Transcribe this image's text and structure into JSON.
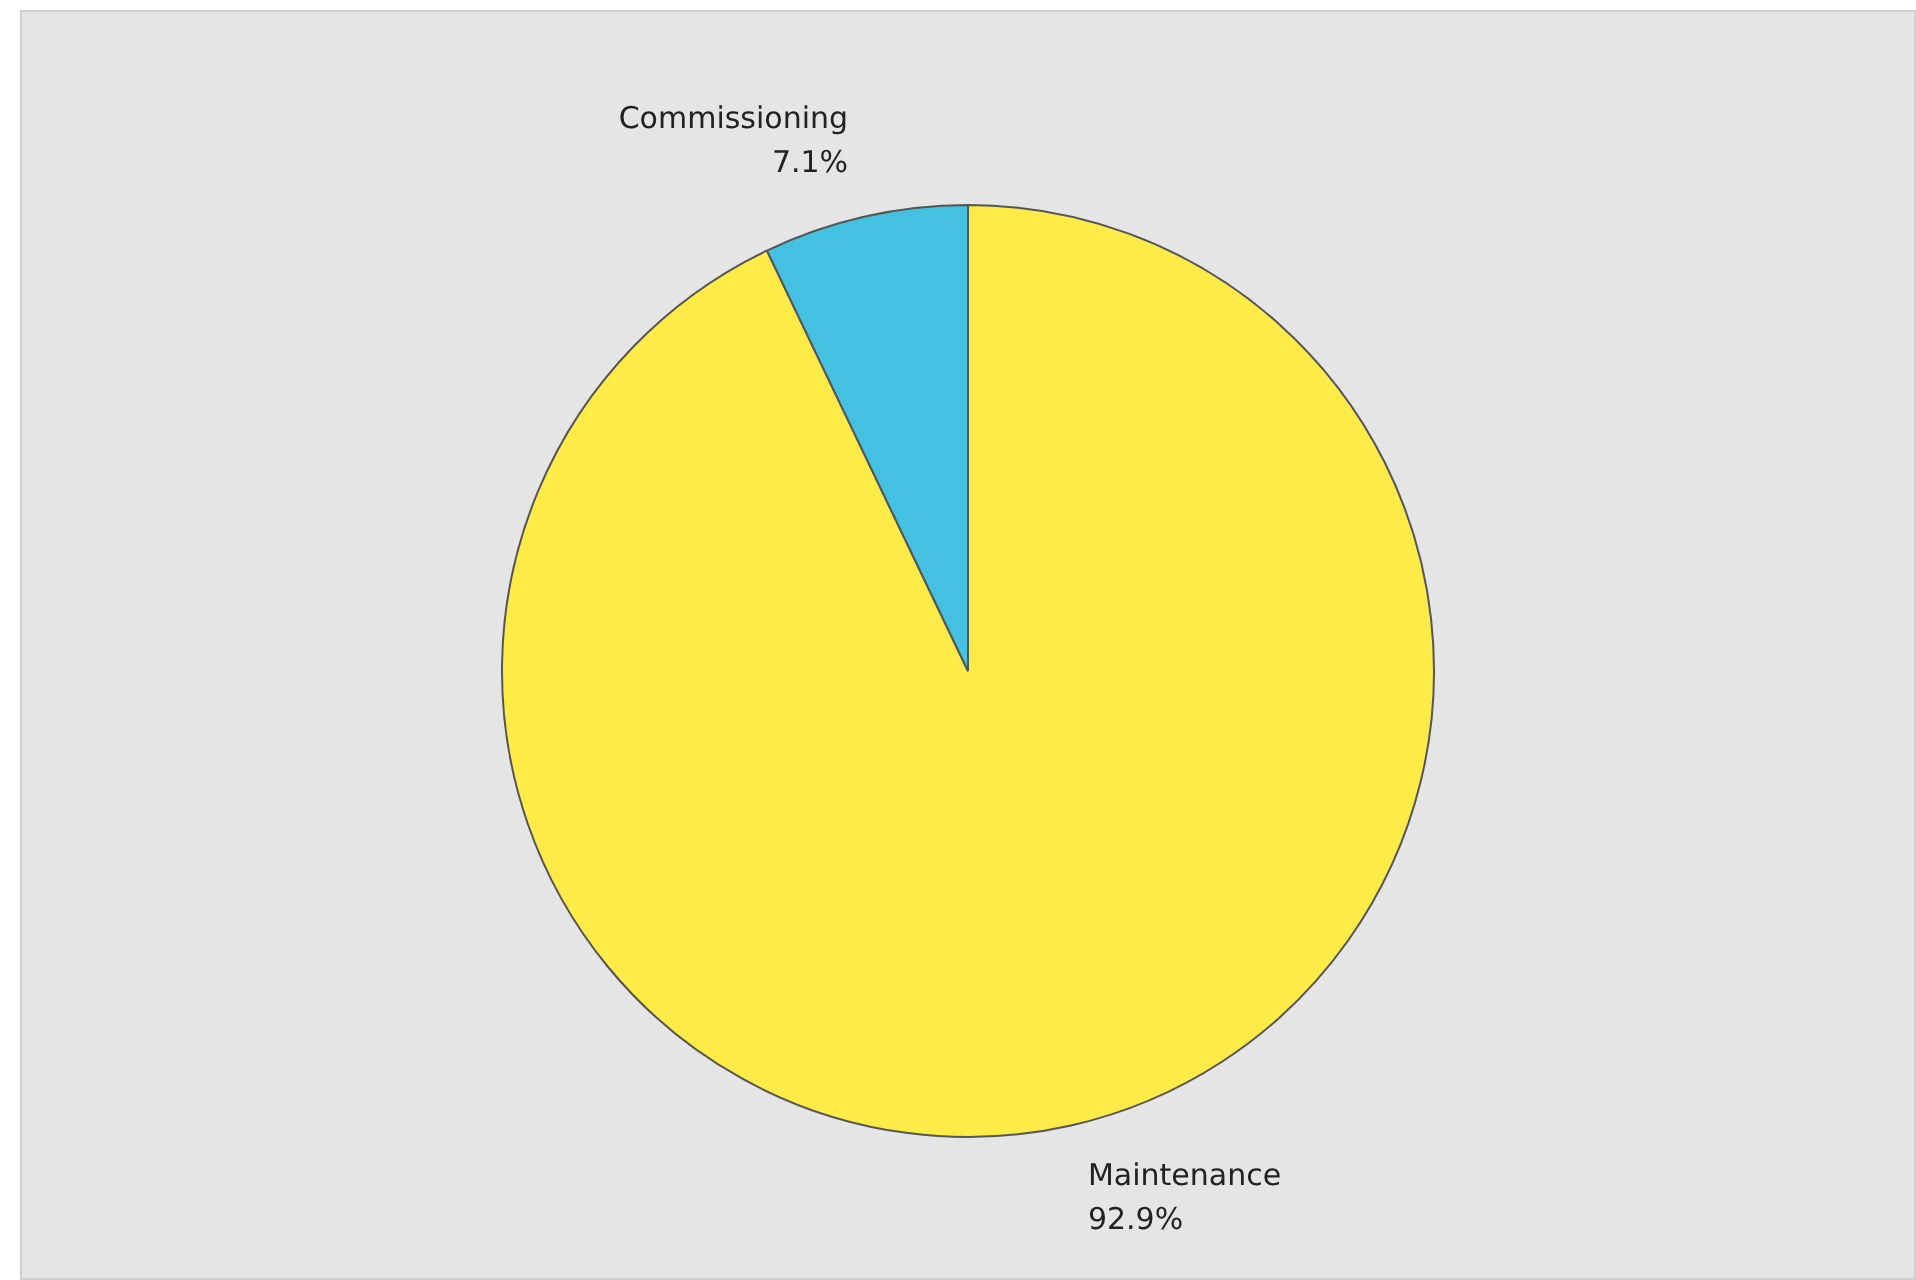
{
  "chart_data": {
    "type": "pie",
    "categories": [
      "Maintenance",
      "Commissioning"
    ],
    "values": [
      92.9,
      7.1
    ],
    "colors": [
      "#ffeb47",
      "#44c1e0"
    ],
    "value_labels": [
      "92.9%",
      "7.1%"
    ],
    "legend": false
  }
}
